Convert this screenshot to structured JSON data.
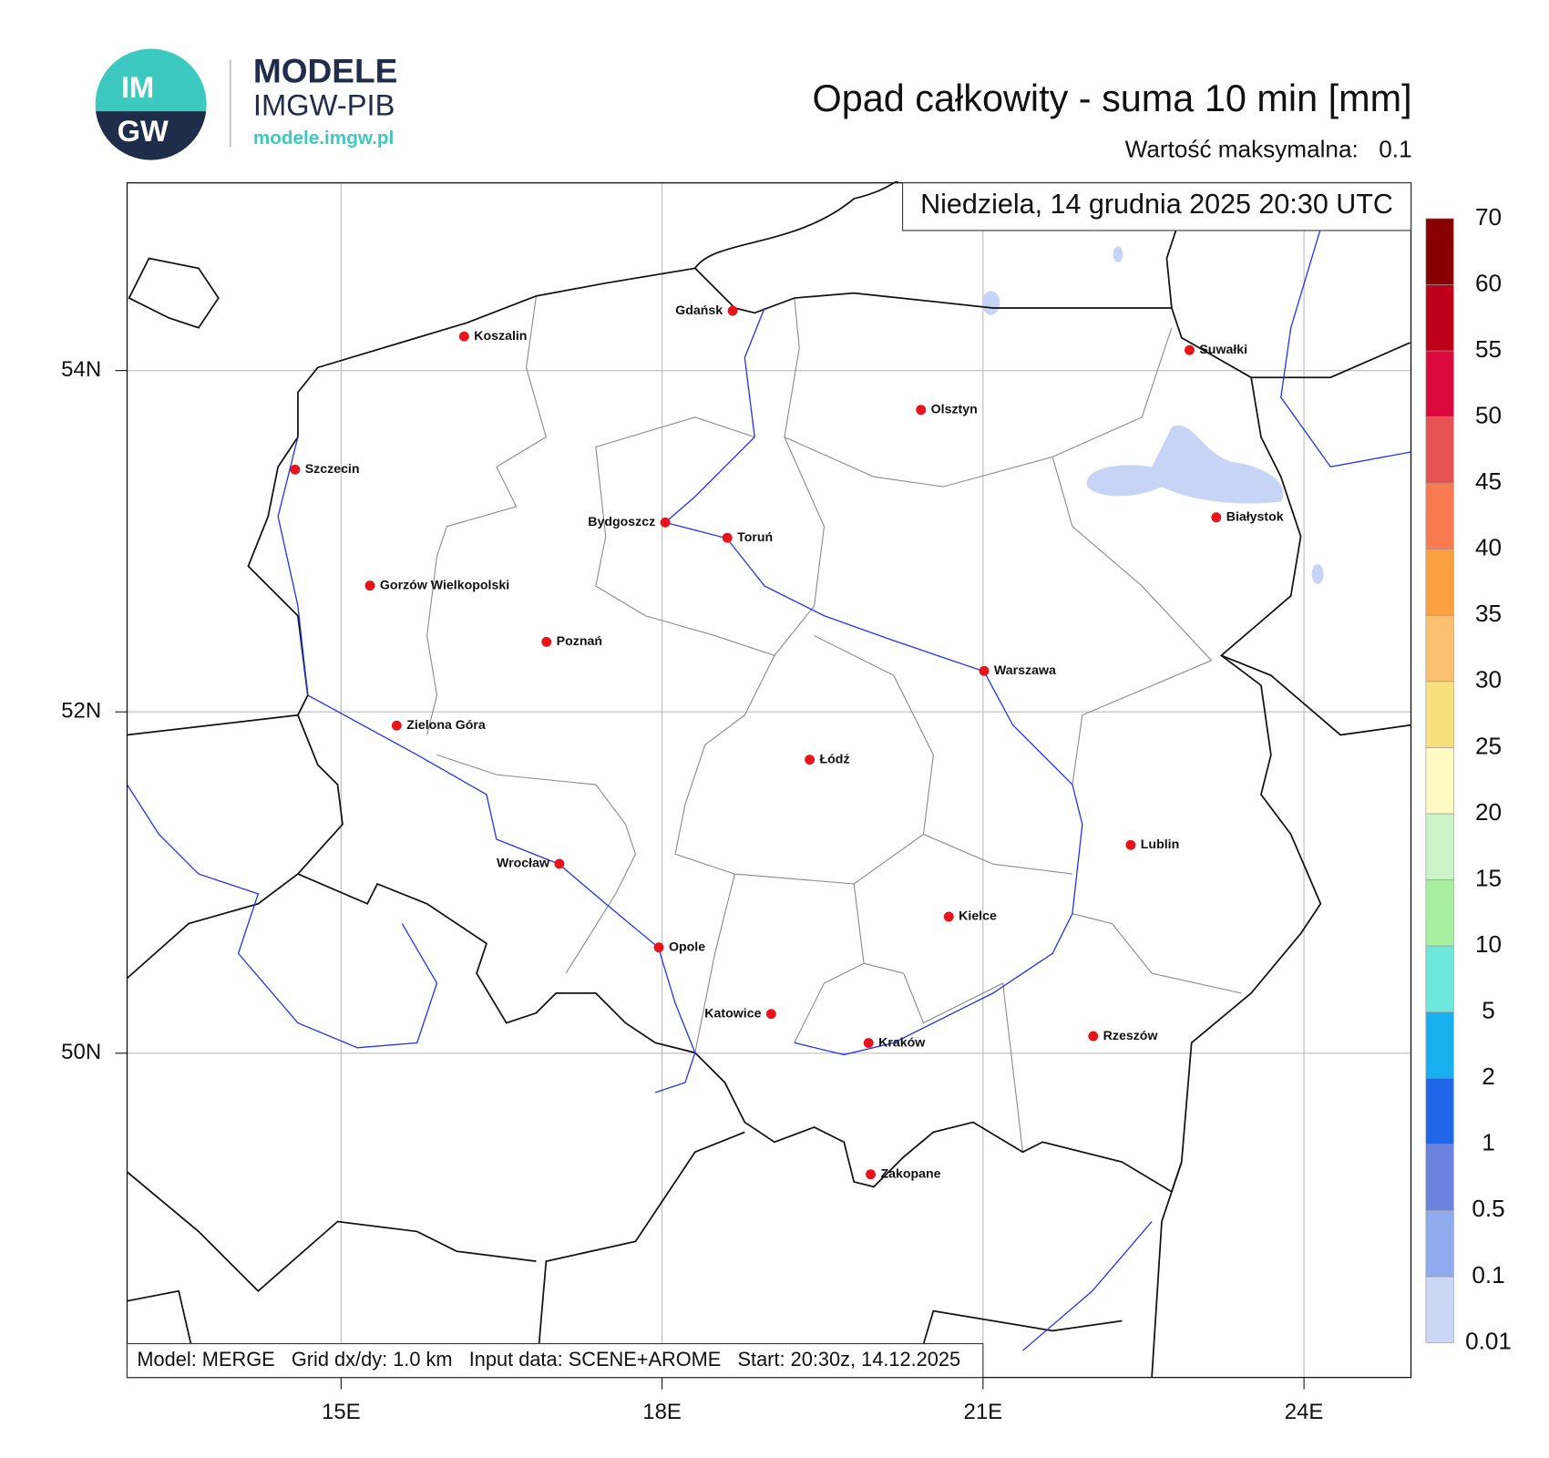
{
  "header": {
    "logo_top": "IM",
    "logo_bottom": "GW",
    "brand": "MODELE",
    "brand_sub": "IMGW-PIB",
    "url": "modele.imgw.pl",
    "title": "Opad całkowity - suma 10 min [mm]",
    "max_label": "Wartość maksymalna:",
    "max_value": 0.1
  },
  "map": {
    "date": "Niedziela, 14 grudnia 2025 20:30 UTC",
    "xlim": [
      13,
      25
    ],
    "ylim": [
      48.1,
      55.1
    ],
    "xticks": [
      {
        "value": 15,
        "label": "15E"
      },
      {
        "value": 18,
        "label": "18E"
      },
      {
        "value": 21,
        "label": "21E"
      },
      {
        "value": 24,
        "label": "24E"
      }
    ],
    "yticks": [
      {
        "value": 50,
        "label": "50N"
      },
      {
        "value": 52,
        "label": "52N"
      },
      {
        "value": 54,
        "label": "54N"
      }
    ],
    "cities": [
      {
        "name": "Koszalin",
        "lon": 16.15,
        "lat": 54.2
      },
      {
        "name": "Gdańsk",
        "lon": 18.66,
        "lat": 54.35
      },
      {
        "name": "Suwałki",
        "lon": 22.93,
        "lat": 54.12
      },
      {
        "name": "Olsztyn",
        "lon": 20.42,
        "lat": 53.77
      },
      {
        "name": "Szczecin",
        "lon": 14.57,
        "lat": 53.42
      },
      {
        "name": "Bydgoszcz",
        "lon": 18.03,
        "lat": 53.11
      },
      {
        "name": "Toruń",
        "lon": 18.61,
        "lat": 53.02
      },
      {
        "name": "Białystok",
        "lon": 23.18,
        "lat": 53.14
      },
      {
        "name": "Gorzów Wielkopolski",
        "lon": 15.27,
        "lat": 52.74
      },
      {
        "name": "Poznań",
        "lon": 16.92,
        "lat": 52.41
      },
      {
        "name": "Warszawa",
        "lon": 21.01,
        "lat": 52.24
      },
      {
        "name": "Zielona Góra",
        "lon": 15.52,
        "lat": 51.92
      },
      {
        "name": "Łódź",
        "lon": 19.38,
        "lat": 51.72
      },
      {
        "name": "Lublin",
        "lon": 22.38,
        "lat": 51.22
      },
      {
        "name": "Wrocław",
        "lon": 17.04,
        "lat": 51.11
      },
      {
        "name": "Kielce",
        "lon": 20.68,
        "lat": 50.8
      },
      {
        "name": "Opole",
        "lon": 17.97,
        "lat": 50.62
      },
      {
        "name": "Katowice",
        "lon": 19.02,
        "lat": 50.23
      },
      {
        "name": "Rzeszów",
        "lon": 22.03,
        "lat": 50.1
      },
      {
        "name": "Kraków",
        "lon": 19.93,
        "lat": 50.06
      },
      {
        "name": "Zakopane",
        "lon": 19.95,
        "lat": 49.29
      }
    ],
    "footer": "Model: MERGE   Grid dx/dy: 1.0 km   Input data: SCENE+AROME   Start: 20:30z, 14.12.2025"
  },
  "colorbar": {
    "levels": [
      0.01,
      0.1,
      0.5,
      1,
      2,
      5,
      10,
      15,
      20,
      25,
      30,
      35,
      40,
      45,
      50,
      55,
      60,
      70
    ],
    "colors": [
      "#ccd6f5",
      "#8eabef",
      "#6a82e0",
      "#1f66e8",
      "#1ab0f0",
      "#6ee8dc",
      "#a8f0a0",
      "#cbf5c8",
      "#fffac2",
      "#f8e07e",
      "#fbc070",
      "#fba040",
      "#f77a50",
      "#e65252",
      "#dc0a3c",
      "#be0018",
      "#8a0000"
    ]
  }
}
